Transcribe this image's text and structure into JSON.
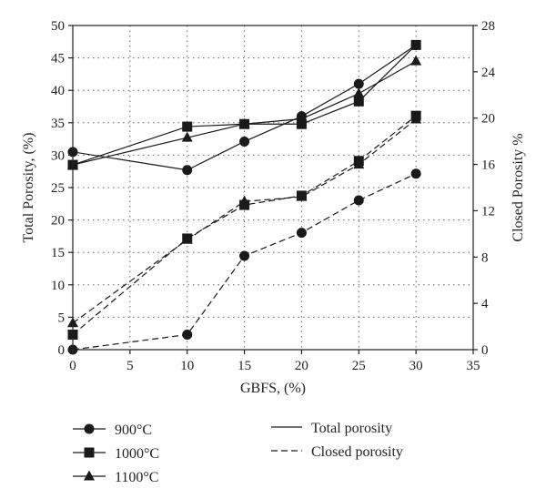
{
  "chart_data": {
    "type": "line",
    "x": [
      0,
      10,
      15,
      20,
      25,
      30
    ],
    "xlabel": "GBFS, (%)",
    "ylabel": "Total Porosity, (%)",
    "y2label": "Closed Porosity %",
    "xlim": [
      0,
      35
    ],
    "ylim": [
      0,
      50
    ],
    "y2lim": [
      0,
      28
    ],
    "xticks": [
      "0",
      "5",
      "10",
      "15",
      "20",
      "25",
      "30",
      "35"
    ],
    "yticks": [
      "0",
      "5",
      "10",
      "15",
      "20",
      "25",
      "30",
      "35",
      "40",
      "45",
      "50"
    ],
    "y2ticks": [
      "0",
      "4",
      "8",
      "12",
      "16",
      "20",
      "24",
      "28"
    ],
    "grid": true,
    "series": [
      {
        "name": "900°C",
        "kind": "total",
        "axis": "left",
        "marker": "circle",
        "style": "solid",
        "values": [
          30.5,
          27.7,
          32.1,
          36.0,
          41.0,
          47.0
        ]
      },
      {
        "name": "1000°C",
        "kind": "total",
        "axis": "left",
        "marker": "square",
        "style": "solid",
        "values": [
          28.5,
          34.4,
          34.8,
          34.8,
          38.3,
          47.0
        ]
      },
      {
        "name": "1100°C",
        "kind": "total",
        "axis": "left",
        "marker": "triangle",
        "style": "solid",
        "values": [
          28.5,
          32.7,
          34.8,
          35.6,
          39.5,
          44.5
        ]
      },
      {
        "name": "900°C",
        "kind": "closed",
        "axis": "right",
        "marker": "circle",
        "style": "dashed",
        "values": [
          0.0,
          1.3,
          8.1,
          10.1,
          12.9,
          15.2
        ]
      },
      {
        "name": "1000°C",
        "kind": "closed",
        "axis": "right",
        "marker": "square",
        "style": "dashed",
        "values": [
          1.3,
          9.6,
          12.5,
          13.3,
          16.3,
          20.2
        ]
      },
      {
        "name": "1100°C",
        "kind": "closed",
        "axis": "right",
        "marker": "triangle",
        "style": "dashed",
        "values": [
          2.3,
          9.5,
          12.8,
          13.2,
          16.0,
          19.9
        ]
      }
    ],
    "legend": {
      "placement": "bottom",
      "markers": [
        {
          "label": "900°C",
          "marker": "circle"
        },
        {
          "label": "1000°C",
          "marker": "square"
        },
        {
          "label": "1100°C",
          "marker": "triangle"
        }
      ],
      "lines": [
        {
          "label": "Total porosity",
          "style": "solid"
        },
        {
          "label": "Closed porosity",
          "style": "dashed"
        }
      ]
    },
    "colors": {
      "ink": "#1a1a1a",
      "grid": "#666666"
    }
  }
}
